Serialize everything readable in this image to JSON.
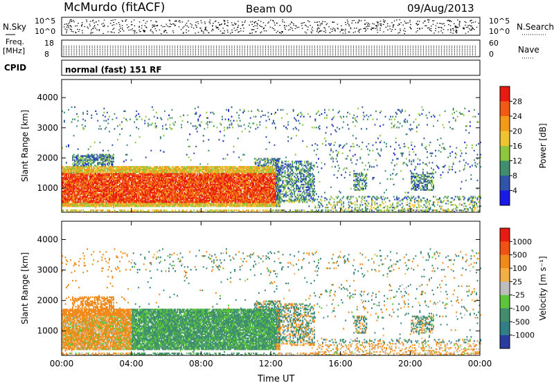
{
  "header": {
    "station": "McMurdo (fitACF)",
    "beam": "Beam 00",
    "date": "09/Aug/2013"
  },
  "summary_panels": {
    "nsky_label": "N.Sky",
    "nsky_ticks": [
      "10^5",
      "10^0"
    ],
    "nsearch_label": "N.Search",
    "nsearch_ticks": [
      "10^5",
      "10^0"
    ],
    "freq_label": [
      "Freq.",
      "[MHz]"
    ],
    "freq_ticks": [
      "18",
      "8"
    ],
    "nave_label": "Nave",
    "nave_ticks": [
      "60",
      "0"
    ],
    "cpid_label": "CPID",
    "cpid_text": "normal (fast) 151 RF"
  },
  "colors": {
    "power_scale": [
      "#1a1ae6",
      "#2f54a8",
      "#3f8f6f",
      "#8ec63f",
      "#f2c230",
      "#f49a1a",
      "#f05a14",
      "#e81b10"
    ],
    "velocity_scale": [
      "#2a3c9e",
      "#2f7f86",
      "#3f8f6f",
      "#5cc63a",
      "#bdbdbd",
      "#f5ad45",
      "#f08a1a",
      "#f05214",
      "#e81b10"
    ]
  },
  "chart_data": [
    {
      "type": "heatmap",
      "title": "Power",
      "ylabel": "Slant Range [km]",
      "xlabel": "",
      "x_ticks": [
        "00:00",
        "04:00",
        "08:00",
        "12:00",
        "16:00",
        "20:00",
        "00:00"
      ],
      "y_ticks": [
        1000,
        2000,
        3000,
        4000
      ],
      "ylim": [
        200,
        4600
      ],
      "xlim_hours": [
        0,
        24
      ],
      "colorbar_label": "Power [dB]",
      "colorbar_ticks": [
        "4",
        "8",
        "12",
        "16",
        "20",
        "24",
        "28"
      ],
      "colorbar_range": [
        0,
        32
      ]
    },
    {
      "type": "heatmap",
      "title": "Velocity",
      "ylabel": "Slant Range [km]",
      "xlabel": "Time UT",
      "x_ticks": [
        "00:00",
        "04:00",
        "08:00",
        "12:00",
        "16:00",
        "20:00",
        "00:00"
      ],
      "y_ticks": [
        1000,
        2000,
        3000,
        4000
      ],
      "ylim": [
        200,
        4600
      ],
      "xlim_hours": [
        0,
        24
      ],
      "colorbar_label": "Velocity [m s⁻¹]",
      "colorbar_ticks": [
        "1000",
        "500",
        "100",
        "25",
        "-25",
        "-100",
        "-500",
        "-1000"
      ]
    }
  ]
}
